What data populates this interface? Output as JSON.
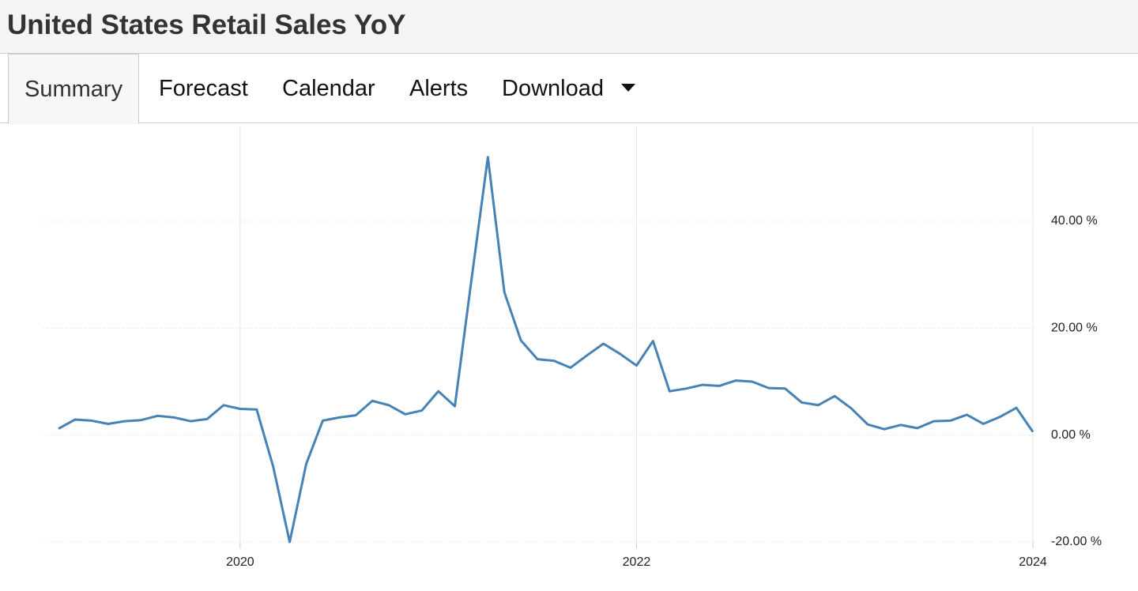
{
  "header": {
    "title": "United States Retail Sales YoY"
  },
  "tabs": [
    "Summary",
    "Forecast",
    "Calendar",
    "Alerts",
    "Download"
  ],
  "chart_data": {
    "type": "line",
    "categories": [
      null,
      null,
      null,
      null,
      null,
      null,
      null,
      null,
      null,
      null,
      null,
      "2020",
      null,
      null,
      null,
      null,
      null,
      null,
      null,
      null,
      null,
      null,
      null,
      null,
      null,
      null,
      null,
      null,
      null,
      null,
      null,
      null,
      null,
      null,
      null,
      "2022",
      null,
      null,
      null,
      null,
      null,
      null,
      null,
      null,
      null,
      null,
      null,
      null,
      null,
      null,
      null,
      null,
      null,
      null,
      null,
      null,
      null,
      null,
      null,
      "2024"
    ],
    "series": [
      {
        "name": "Retail Sales YoY",
        "color": "#4682b4",
        "values": [
          1.2,
          2.9,
          2.7,
          2.1,
          2.6,
          2.8,
          3.6,
          3.3,
          2.6,
          3.0,
          5.6,
          4.9,
          4.8,
          -5.9,
          -20.0,
          -5.4,
          2.7,
          3.3,
          3.7,
          6.4,
          5.6,
          3.9,
          4.6,
          8.2,
          5.4,
          28.9,
          52.0,
          26.7,
          17.7,
          14.2,
          13.9,
          12.6,
          14.9,
          17.1,
          15.2,
          13.0,
          17.6,
          8.2,
          8.7,
          9.4,
          9.2,
          10.2,
          10.0,
          8.8,
          8.7,
          6.1,
          5.6,
          7.3,
          5.0,
          2.0,
          1.1,
          1.9,
          1.3,
          2.6,
          2.7,
          3.8,
          2.1,
          3.4,
          5.1,
          0.6
        ]
      }
    ],
    "ylim": [
      -20,
      57
    ],
    "yticks": [
      {
        "value": -20,
        "label": "-20.00 %"
      },
      {
        "value": 0,
        "label": "0.00 %"
      },
      {
        "value": 20,
        "label": "20.00 %"
      },
      {
        "value": 40,
        "label": "40.00 %"
      }
    ],
    "grid": true
  }
}
